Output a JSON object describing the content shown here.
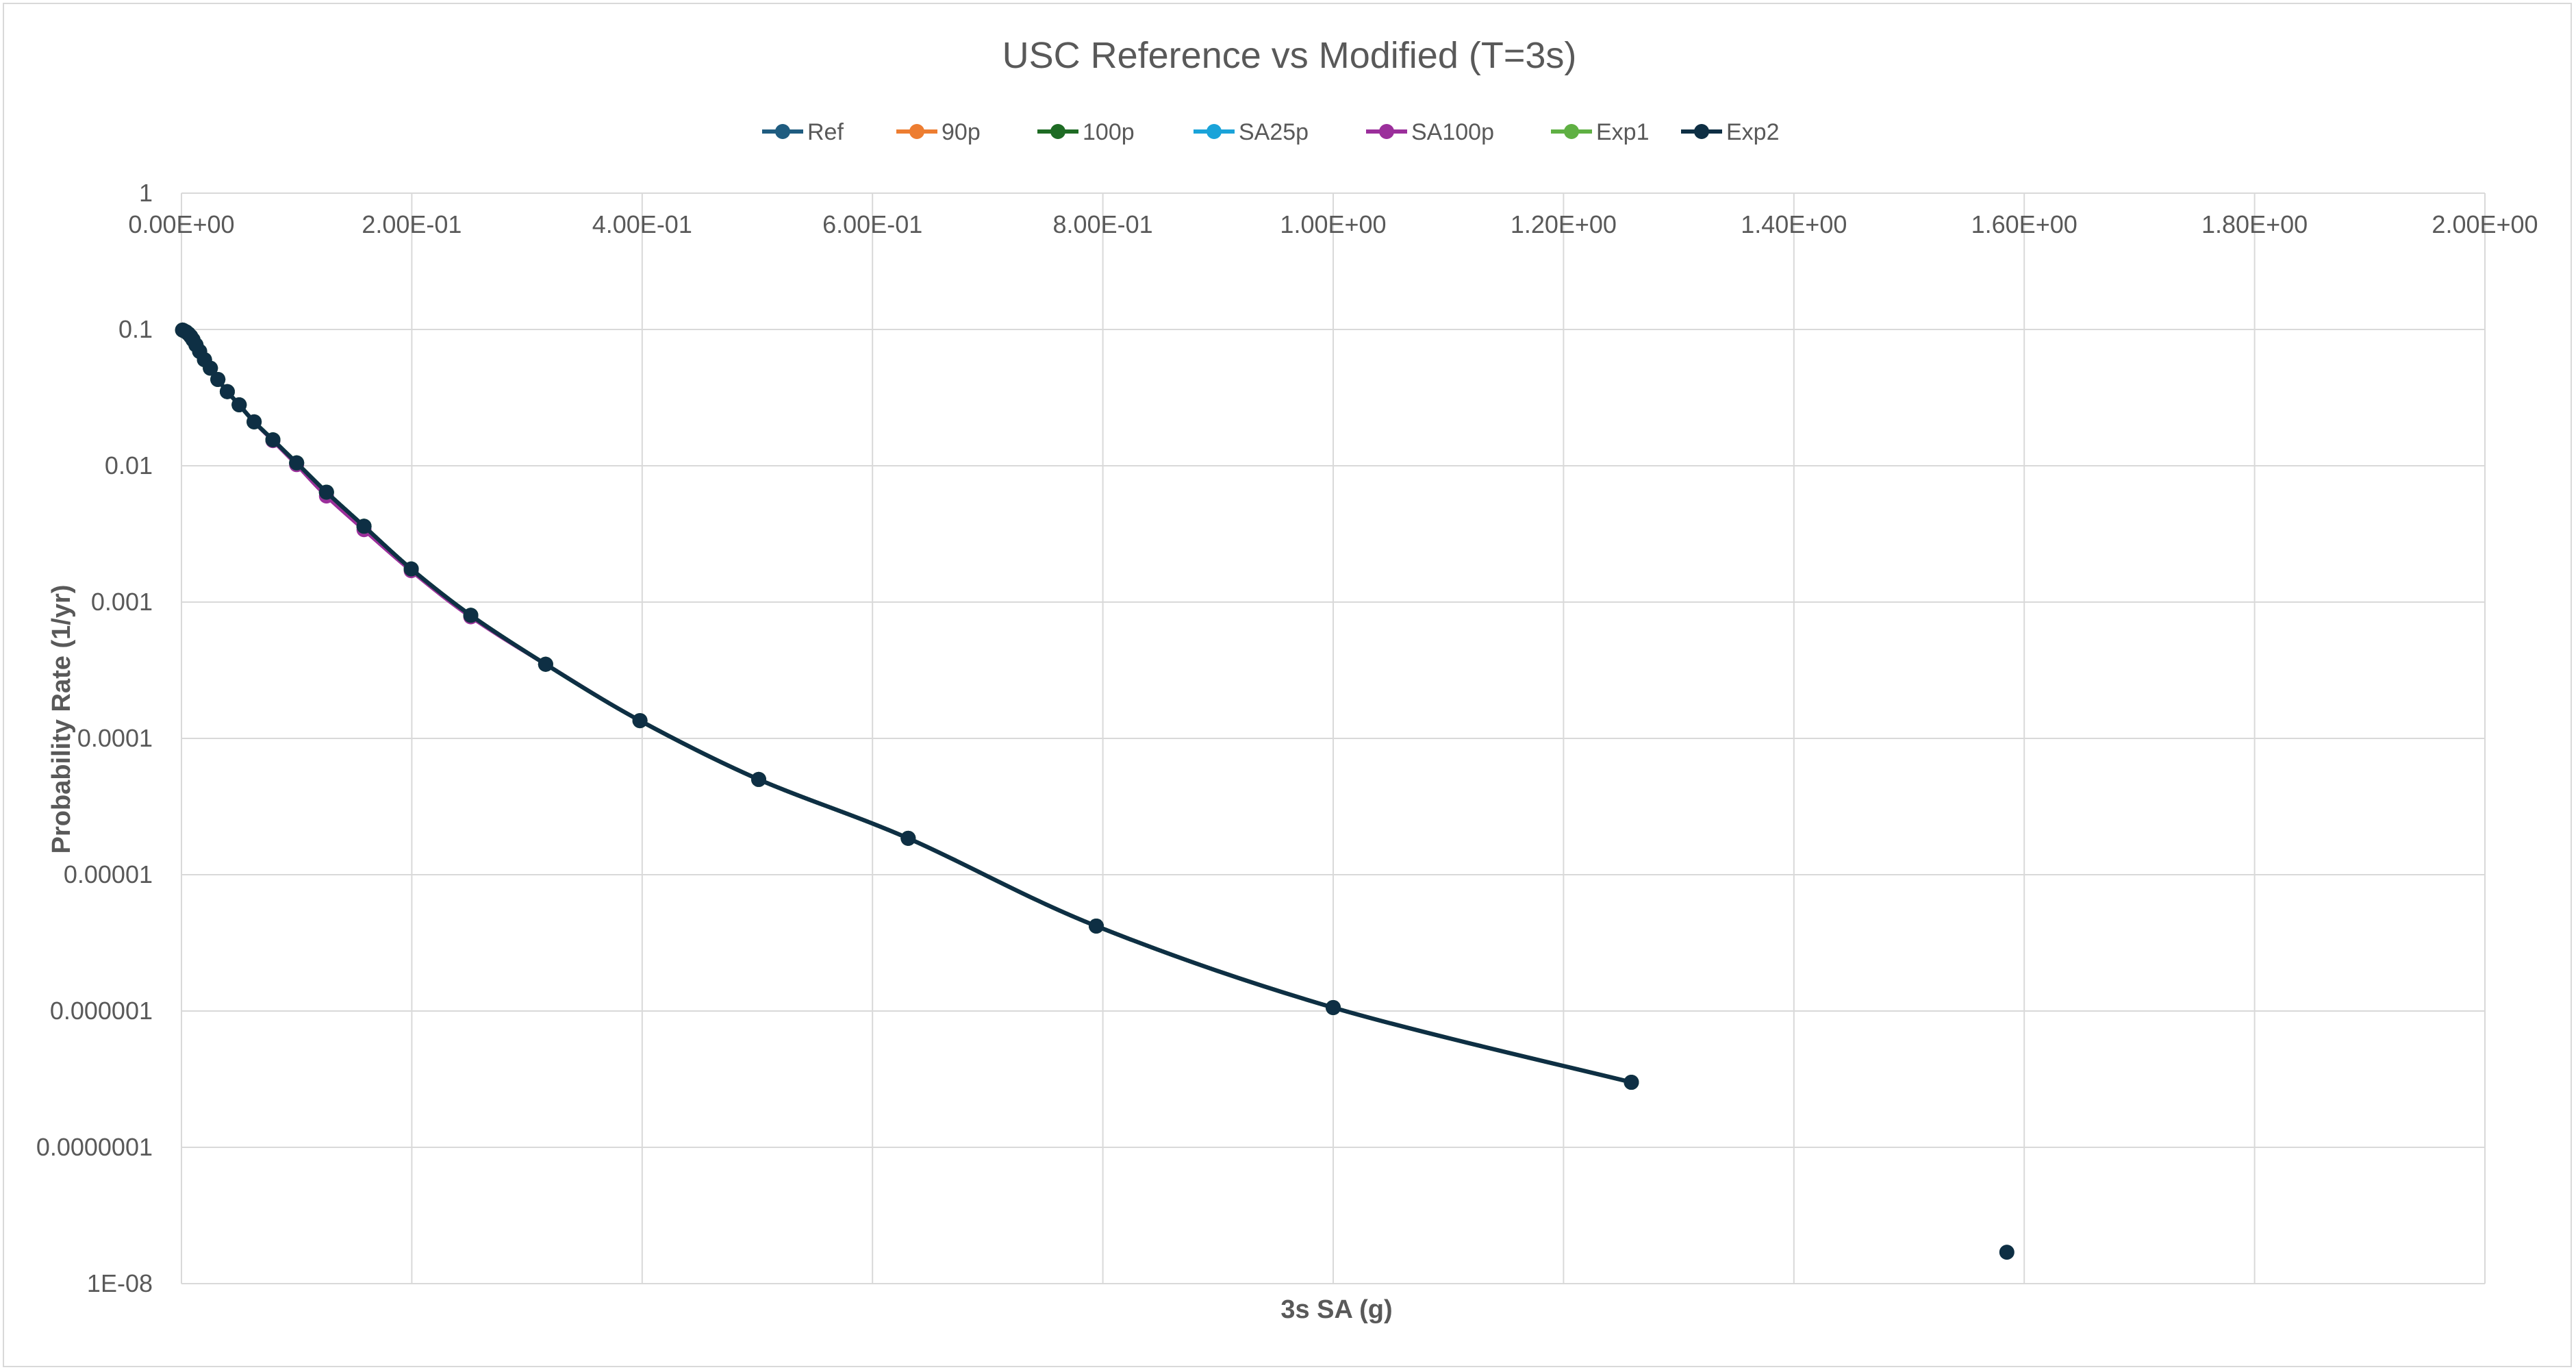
{
  "chart_data": {
    "type": "scatter",
    "title": "USC Reference vs Modified (T=3s)",
    "xlabel": "3s SA (g)",
    "ylabel": "Probability Rate (1/yr)",
    "xlim": [
      0,
      2.0
    ],
    "ylim": [
      1e-08,
      1
    ],
    "y_scale": "log",
    "x_ticks": [
      0,
      0.2,
      0.4,
      0.6,
      0.8,
      1.0,
      1.2,
      1.4,
      1.6,
      1.8,
      2.0
    ],
    "x_tick_labels": [
      "0.00E+00",
      "2.00E-01",
      "4.00E-01",
      "6.00E-01",
      "8.00E-01",
      "1.00E+00",
      "1.20E+00",
      "1.40E+00",
      "1.60E+00",
      "1.80E+00",
      "2.00E+00"
    ],
    "y_ticks": [
      1,
      0.1,
      0.01,
      0.001,
      0.0001,
      1e-05,
      1e-06,
      1e-07,
      1e-08
    ],
    "y_tick_labels": [
      "1",
      "0.1",
      "0.01",
      "0.001",
      "0.0001",
      "0.00001",
      "0.000001",
      "0.0000001",
      "1E-08"
    ],
    "x_axis_position": "top",
    "grid": true,
    "legend_position": "top",
    "series": [
      {
        "name": "Ref",
        "color": "#1f5c80",
        "x": [
          0.001,
          0.002,
          0.004,
          0.006,
          0.008,
          0.01,
          0.0126,
          0.0158,
          0.02,
          0.0251,
          0.0316,
          0.0398,
          0.0501,
          0.0631,
          0.0794,
          0.1,
          0.1259,
          0.1585,
          0.1995,
          0.2512,
          0.3162,
          0.3981,
          0.5012,
          0.631,
          0.7943,
          1.0,
          1.2589
        ],
        "y": [
          0.099,
          0.098,
          0.096,
          0.093,
          0.089,
          0.084,
          0.077,
          0.069,
          0.06,
          0.052,
          0.043,
          0.035,
          0.028,
          0.021,
          0.0155,
          0.0105,
          0.0064,
          0.0036,
          0.00175,
          0.0008,
          0.00035,
          0.000135,
          5e-05,
          1.85e-05,
          4.2e-06,
          1.06e-06,
          3e-07
        ]
      },
      {
        "name": "90p",
        "color": "#ed7d31",
        "x": [
          0.001,
          0.002,
          0.004,
          0.006,
          0.008,
          0.01,
          0.0126,
          0.0158,
          0.02,
          0.0251,
          0.0316,
          0.0398,
          0.0501,
          0.0631,
          0.0794,
          0.1,
          0.1259,
          0.1585,
          0.1995,
          0.2512,
          0.3162,
          0.3981,
          0.5012,
          0.631,
          0.7943,
          1.0,
          1.2589
        ],
        "y": [
          0.099,
          0.098,
          0.096,
          0.093,
          0.089,
          0.084,
          0.077,
          0.069,
          0.06,
          0.052,
          0.043,
          0.035,
          0.028,
          0.021,
          0.0155,
          0.0105,
          0.0064,
          0.0036,
          0.00175,
          0.0008,
          0.00035,
          0.000135,
          5e-05,
          1.85e-05,
          4.2e-06,
          1.06e-06,
          3e-07
        ]
      },
      {
        "name": "100p",
        "color": "#1e6b24",
        "x": [
          0.001,
          0.002,
          0.004,
          0.006,
          0.008,
          0.01,
          0.0126,
          0.0158,
          0.02,
          0.0251,
          0.0316,
          0.0398,
          0.0501,
          0.0631,
          0.0794,
          0.1,
          0.1259,
          0.1585,
          0.1995,
          0.2512,
          0.3162,
          0.3981,
          0.5012,
          0.631,
          0.7943,
          1.0,
          1.2589
        ],
        "y": [
          0.099,
          0.098,
          0.096,
          0.093,
          0.089,
          0.084,
          0.077,
          0.069,
          0.06,
          0.052,
          0.043,
          0.035,
          0.028,
          0.021,
          0.0155,
          0.0105,
          0.0064,
          0.0036,
          0.00175,
          0.0008,
          0.00035,
          0.000135,
          5e-05,
          1.85e-05,
          4.2e-06,
          1.06e-06,
          3e-07
        ]
      },
      {
        "name": "SA25p",
        "color": "#1aa3d9",
        "x": [
          0.001,
          0.002,
          0.004,
          0.006,
          0.008,
          0.01,
          0.0126,
          0.0158,
          0.02,
          0.0251,
          0.0316,
          0.0398,
          0.0501,
          0.0631,
          0.0794,
          0.1,
          0.1259,
          0.1585,
          0.1995,
          0.2512,
          0.3162,
          0.3981,
          0.5012,
          0.631,
          0.7943,
          1.0,
          1.2589
        ],
        "y": [
          0.099,
          0.098,
          0.096,
          0.093,
          0.089,
          0.084,
          0.077,
          0.069,
          0.06,
          0.052,
          0.043,
          0.035,
          0.028,
          0.021,
          0.0155,
          0.0105,
          0.0064,
          0.0036,
          0.00175,
          0.0008,
          0.00035,
          0.000135,
          5e-05,
          1.85e-05,
          4.2e-06,
          1.06e-06,
          3e-07
        ]
      },
      {
        "name": "SA100p",
        "color": "#9b2f9b",
        "x": [
          0.001,
          0.002,
          0.004,
          0.006,
          0.008,
          0.01,
          0.0126,
          0.0158,
          0.02,
          0.0251,
          0.0316,
          0.0398,
          0.0501,
          0.0631,
          0.0794,
          0.1,
          0.1259,
          0.1585,
          0.1995,
          0.2512,
          0.3162,
          0.3981,
          0.5012,
          0.631,
          0.7943,
          1.0,
          1.2589
        ],
        "y": [
          0.099,
          0.098,
          0.096,
          0.093,
          0.089,
          0.084,
          0.077,
          0.069,
          0.06,
          0.052,
          0.043,
          0.035,
          0.028,
          0.021,
          0.0153,
          0.0102,
          0.006,
          0.0034,
          0.0017,
          0.00078,
          0.00035,
          0.000135,
          5e-05,
          1.85e-05,
          4.2e-06,
          1.06e-06,
          3e-07
        ]
      },
      {
        "name": "Exp1",
        "color": "#5fb043",
        "x": [
          0.001,
          0.002,
          0.004,
          0.006,
          0.008,
          0.01,
          0.0126,
          0.0158,
          0.02,
          0.0251,
          0.0316,
          0.0398,
          0.0501,
          0.0631,
          0.0794,
          0.1,
          0.1259,
          0.1585,
          0.1995,
          0.2512,
          0.3162,
          0.3981,
          0.5012,
          0.631,
          0.7943,
          1.0,
          1.2589
        ],
        "y": [
          0.099,
          0.098,
          0.096,
          0.093,
          0.089,
          0.084,
          0.077,
          0.069,
          0.06,
          0.052,
          0.043,
          0.035,
          0.028,
          0.021,
          0.0155,
          0.0105,
          0.0064,
          0.0036,
          0.00175,
          0.0008,
          0.00035,
          0.000135,
          5e-05,
          1.85e-05,
          4.2e-06,
          1.06e-06,
          3e-07
        ]
      },
      {
        "name": "Exp2",
        "color": "#0e2f44",
        "x": [
          0.001,
          0.002,
          0.004,
          0.006,
          0.008,
          0.01,
          0.0126,
          0.0158,
          0.02,
          0.0251,
          0.0316,
          0.0398,
          0.0501,
          0.0631,
          0.0794,
          0.1,
          0.1259,
          0.1585,
          0.1995,
          0.2512,
          0.3162,
          0.3981,
          0.5012,
          0.631,
          0.7943,
          1.0,
          1.2589,
          1.5849
        ],
        "y": [
          0.099,
          0.098,
          0.096,
          0.093,
          0.089,
          0.084,
          0.077,
          0.069,
          0.06,
          0.052,
          0.043,
          0.035,
          0.028,
          0.021,
          0.0155,
          0.0105,
          0.0064,
          0.0036,
          0.00175,
          0.0008,
          0.00035,
          0.000135,
          5e-05,
          1.85e-05,
          4.2e-06,
          1.06e-06,
          3e-07,
          1.7e-08
        ]
      }
    ]
  }
}
